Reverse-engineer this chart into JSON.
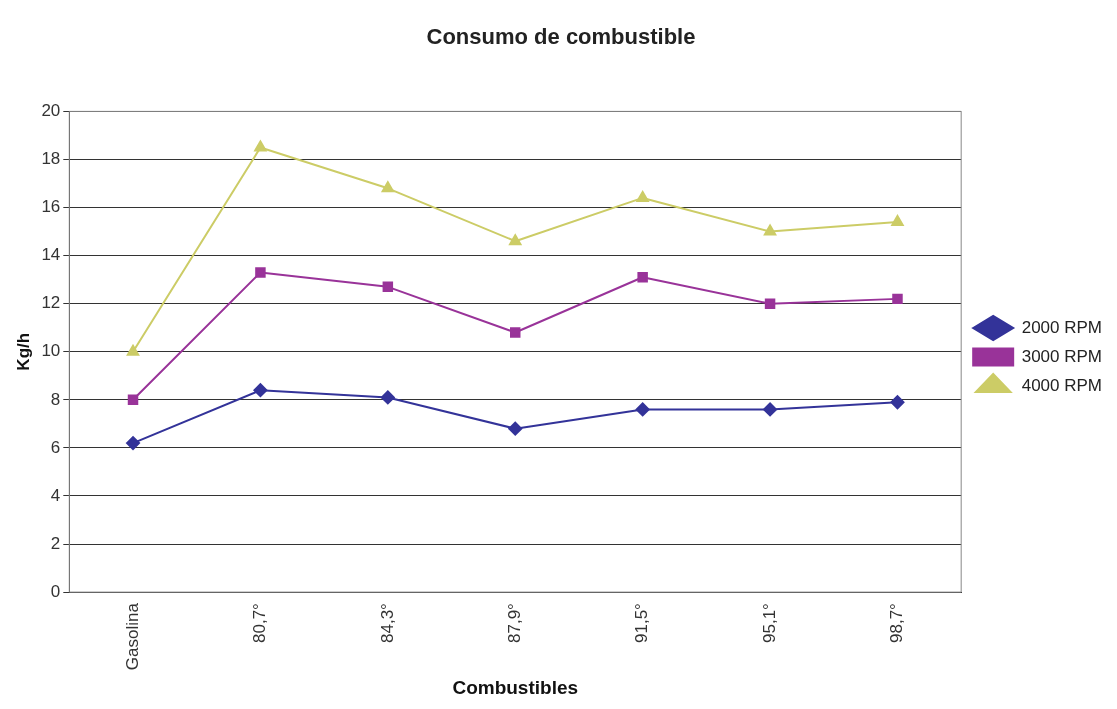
{
  "chart_data": {
    "type": "line",
    "title": "Consumo de combustible",
    "xlabel": "Combustibles",
    "ylabel": "Kg/h",
    "categories": [
      "Gasolina",
      "80,7°",
      "84,3°",
      "87,9°",
      "91,5°",
      "95,1°",
      "98,7°"
    ],
    "series": [
      {
        "name": "2000 RPM",
        "color": "#333399",
        "marker": "diamond",
        "values": [
          6.2,
          8.4,
          8.1,
          6.8,
          7.6,
          7.6,
          7.9
        ]
      },
      {
        "name": "3000 RPM",
        "color": "#993399",
        "marker": "square",
        "values": [
          8.0,
          13.3,
          12.7,
          10.8,
          13.1,
          12.0,
          12.2
        ]
      },
      {
        "name": "4000 RPM",
        "color": "#cccc66",
        "marker": "triangle",
        "values": [
          10.0,
          18.5,
          16.8,
          14.6,
          16.4,
          15.0,
          15.4
        ]
      }
    ],
    "ylim": [
      0,
      20
    ],
    "yticks": [
      0,
      2,
      4,
      6,
      8,
      10,
      12,
      14,
      16,
      18,
      20
    ],
    "grid": "y",
    "legend": "right",
    "line_style": "solid"
  }
}
